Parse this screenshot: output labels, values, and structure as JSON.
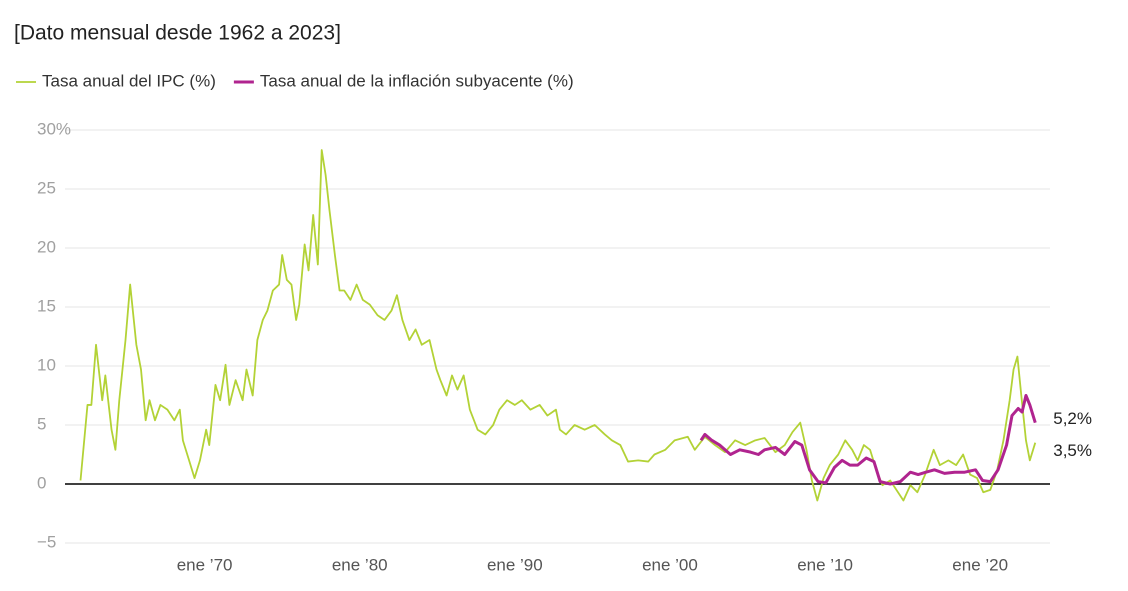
{
  "chart_data": {
    "type": "line",
    "subtitle": "[Dato mensual desde 1962 a 2023]",
    "xlim": [
      1961,
      2024.5
    ],
    "xticks": [
      {
        "value": 1970,
        "label": "ene ’70"
      },
      {
        "value": 1980,
        "label": "ene ’80"
      },
      {
        "value": 1990,
        "label": "ene ’90"
      },
      {
        "value": 2000,
        "label": "ene ’00"
      },
      {
        "value": 2010,
        "label": "ene ’10"
      },
      {
        "value": 2020,
        "label": "ene ’20"
      }
    ],
    "ylim": [
      -5,
      30
    ],
    "yticks": [
      {
        "value": -5,
        "label": "−5"
      },
      0,
      5,
      10,
      15,
      20,
      25,
      {
        "value": 30,
        "label": "30%"
      }
    ],
    "grid": true,
    "series": [
      {
        "name": "Tasa anual del IPC (%)",
        "color": "#b3d236",
        "x": [
          1962.0,
          1962.45,
          1962.7,
          1963.0,
          1963.4,
          1963.6,
          1964.0,
          1964.25,
          1964.5,
          1964.9,
          1965.2,
          1965.6,
          1965.9,
          1966.2,
          1966.45,
          1966.8,
          1967.15,
          1967.6,
          1968.05,
          1968.4,
          1968.6,
          1969.0,
          1969.35,
          1969.7,
          1970.1,
          1970.3,
          1970.7,
          1971.0,
          1971.35,
          1971.6,
          1972.0,
          1972.45,
          1972.7,
          1973.1,
          1973.4,
          1973.75,
          1974.05,
          1974.4,
          1974.8,
          1975.0,
          1975.3,
          1975.6,
          1975.9,
          1976.1,
          1976.45,
          1976.7,
          1977.0,
          1977.3,
          1977.55,
          1977.8,
          1978.05,
          1978.4,
          1978.7,
          1979.0,
          1979.4,
          1979.8,
          1980.2,
          1980.65,
          1981.15,
          1981.6,
          1982.05,
          1982.4,
          1982.75,
          1983.2,
          1983.6,
          1984.0,
          1984.5,
          1984.95,
          1985.2,
          1985.6,
          1985.95,
          1986.3,
          1986.7,
          1987.1,
          1987.6,
          1988.1,
          1988.6,
          1989.0,
          1989.5,
          1990.0,
          1990.45,
          1991.0,
          1991.6,
          1992.1,
          1992.65,
          1992.9,
          1993.3,
          1993.85,
          1994.5,
          1995.15,
          1995.8,
          1996.25,
          1996.8,
          1997.3,
          1997.95,
          1998.6,
          1999.0,
          1999.7,
          2000.3,
          2001.15,
          2001.6,
          2002.25,
          2002.9,
          2003.55,
          2004.2,
          2004.85,
          2005.5,
          2006.1,
          2006.8,
          2007.4,
          2007.9,
          2008.4,
          2008.8,
          2009.15,
          2009.5,
          2009.9,
          2010.3,
          2010.85,
          2011.3,
          2011.75,
          2012.1,
          2012.5,
          2012.9,
          2013.3,
          2013.7,
          2014.2,
          2014.7,
          2015.05,
          2015.5,
          2015.95,
          2016.45,
          2017.0,
          2017.4,
          2017.95,
          2018.45,
          2018.9,
          2019.35,
          2019.8,
          2020.2,
          2020.65,
          2021.1,
          2021.5,
          2021.9,
          2022.15,
          2022.4,
          2022.65,
          2022.95,
          2023.2,
          2023.55
        ],
        "values": [
          0.3,
          6.7,
          6.7,
          11.8,
          7.1,
          9.2,
          4.6,
          2.9,
          7.1,
          12.2,
          16.9,
          11.8,
          9.7,
          5.4,
          7.1,
          5.4,
          6.7,
          6.3,
          5.4,
          6.3,
          3.7,
          2.0,
          0.5,
          2.0,
          4.6,
          3.3,
          8.4,
          7.1,
          10.1,
          6.7,
          8.8,
          7.1,
          9.7,
          7.5,
          12.2,
          13.9,
          14.7,
          16.4,
          16.9,
          19.4,
          17.3,
          16.9,
          13.9,
          15.2,
          20.3,
          18.1,
          22.8,
          18.6,
          28.3,
          26.2,
          23.2,
          19.4,
          16.4,
          16.4,
          15.6,
          16.9,
          15.6,
          15.2,
          14.3,
          13.9,
          14.7,
          16.0,
          13.9,
          12.2,
          13.1,
          11.8,
          12.2,
          9.7,
          8.8,
          7.5,
          9.2,
          8.0,
          9.2,
          6.3,
          4.6,
          4.2,
          5.0,
          6.3,
          7.1,
          6.7,
          7.1,
          6.3,
          6.7,
          5.8,
          6.3,
          4.6,
          4.2,
          5.0,
          4.6,
          5.0,
          4.2,
          3.7,
          3.3,
          1.9,
          2.0,
          1.9,
          2.5,
          2.9,
          3.7,
          4.0,
          2.9,
          4.0,
          3.3,
          2.7,
          3.7,
          3.3,
          3.7,
          3.9,
          2.7,
          3.3,
          4.4,
          5.2,
          2.9,
          0.3,
          -1.4,
          0.5,
          1.6,
          2.5,
          3.7,
          2.9,
          2.0,
          3.3,
          2.9,
          1.2,
          -0.1,
          0.3,
          -0.7,
          -1.4,
          -0.1,
          -0.7,
          0.8,
          2.9,
          1.6,
          2.0,
          1.6,
          2.5,
          0.8,
          0.5,
          -0.7,
          -0.5,
          1.2,
          3.7,
          7.1,
          9.7,
          10.8,
          7.5,
          3.7,
          2.0,
          3.5
        ],
        "value_labels": [
          null,
          null,
          null,
          null,
          null,
          null,
          null,
          null,
          null,
          null,
          null,
          null,
          null,
          null,
          null,
          null,
          null,
          null,
          null,
          null,
          null,
          null,
          null,
          null,
          null,
          null,
          null,
          null,
          null,
          null,
          null,
          null,
          null,
          null,
          null,
          null,
          null,
          null,
          null,
          null,
          null,
          null,
          null,
          null,
          null,
          null,
          null,
          null,
          null,
          null,
          null,
          null,
          null,
          null,
          null,
          null,
          null,
          null,
          null,
          null,
          null,
          null,
          null,
          null,
          null,
          null,
          null,
          null,
          null,
          null,
          null,
          null,
          null,
          null,
          null,
          null,
          null,
          null,
          null,
          null,
          null,
          null,
          null,
          null,
          null,
          null,
          null,
          null,
          null,
          null,
          null,
          null,
          null,
          null,
          null,
          null,
          null,
          null,
          null,
          null,
          null,
          null,
          null,
          null,
          null,
          null,
          null,
          null,
          null,
          null,
          null,
          null,
          null,
          null,
          null,
          null,
          null,
          null,
          null,
          null,
          null,
          null,
          null,
          null,
          null,
          null,
          null,
          null,
          null,
          null,
          null,
          null,
          null,
          null,
          null,
          null,
          null,
          null,
          null,
          null,
          null,
          null,
          null,
          null,
          null,
          null,
          null,
          null,
          "3,5%"
        ]
      },
      {
        "name": "Tasa anual de la inflación subyacente (%)",
        "color": "#b0248f",
        "x": [
          2002.0,
          2002.25,
          2002.7,
          2003.2,
          2003.9,
          2004.5,
          2005.2,
          2005.7,
          2006.1,
          2006.8,
          2007.4,
          2008.05,
          2008.5,
          2009.0,
          2009.55,
          2010.05,
          2010.6,
          2011.1,
          2011.6,
          2012.1,
          2012.65,
          2013.15,
          2013.55,
          2014.2,
          2014.85,
          2015.5,
          2016.0,
          2016.5,
          2017.05,
          2017.7,
          2018.35,
          2019.0,
          2019.7,
          2020.15,
          2020.65,
          2021.15,
          2021.7,
          2022.05,
          2022.45,
          2022.7,
          2022.95,
          2023.2,
          2023.55
        ],
        "values": [
          3.7,
          4.2,
          3.7,
          3.3,
          2.5,
          2.9,
          2.7,
          2.5,
          2.9,
          3.1,
          2.5,
          3.6,
          3.3,
          1.2,
          0.2,
          0.1,
          1.4,
          2.0,
          1.6,
          1.6,
          2.2,
          1.9,
          0.2,
          0.0,
          0.2,
          1.0,
          0.8,
          1.0,
          1.2,
          0.9,
          1.0,
          1.0,
          1.2,
          0.3,
          0.2,
          1.2,
          3.3,
          5.8,
          6.4,
          6.1,
          7.5,
          6.7,
          5.2
        ],
        "value_labels": [
          null,
          null,
          null,
          null,
          null,
          null,
          null,
          null,
          null,
          null,
          null,
          null,
          null,
          null,
          null,
          null,
          null,
          null,
          null,
          null,
          null,
          null,
          null,
          null,
          null,
          null,
          null,
          null,
          null,
          null,
          null,
          null,
          null,
          null,
          null,
          null,
          null,
          null,
          null,
          null,
          null,
          null,
          "5,2%"
        ]
      }
    ]
  }
}
